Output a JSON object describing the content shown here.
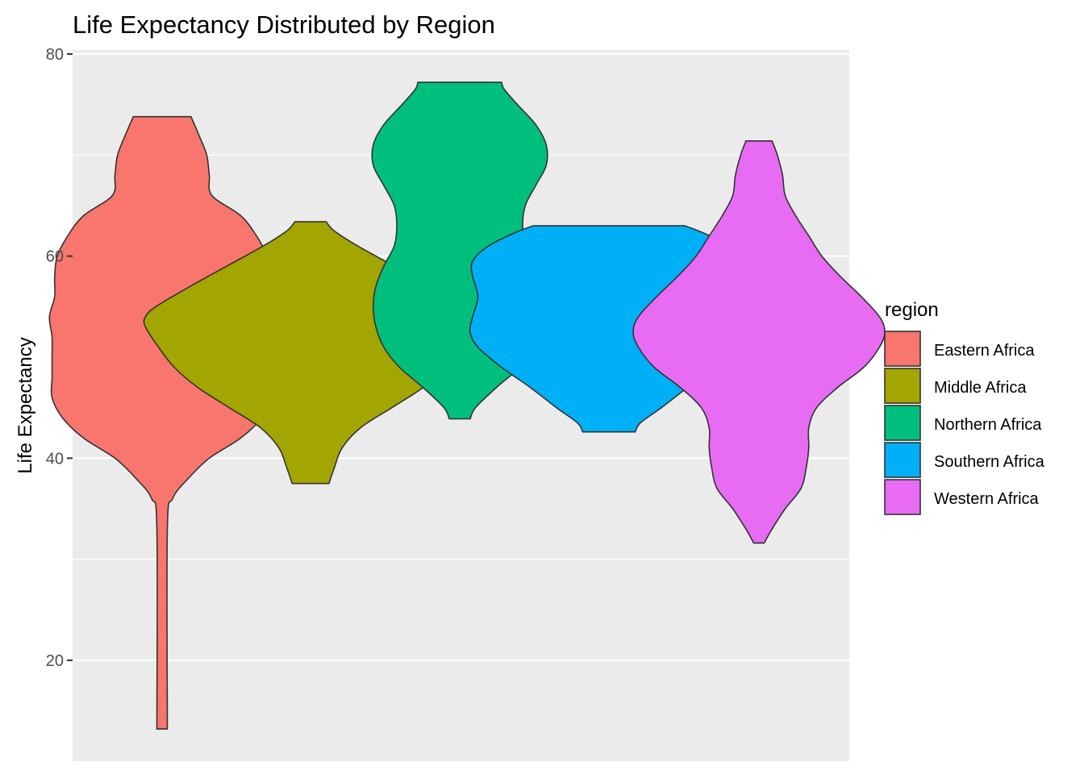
{
  "chart_data": {
    "type": "violin",
    "title": "Life Expectancy Distributed by Region",
    "xlabel": "",
    "ylabel": "Life Expectancy",
    "ylim": [
      9.5,
      80.2
    ],
    "y_ticks": [
      20,
      40,
      60,
      80
    ],
    "y_minor_ticks": [
      30,
      50,
      70
    ],
    "grid": true,
    "legend_title": "region",
    "legend_position": "right",
    "series": [
      {
        "name": "Eastern Africa",
        "color": "#F8766D",
        "min": 13.2,
        "max": 73.8,
        "profile": [
          [
            13.2,
            0.2
          ],
          [
            33,
            0.2
          ],
          [
            36,
            0.4
          ],
          [
            38,
            1.0
          ],
          [
            40,
            1.8
          ],
          [
            42,
            3.0
          ],
          [
            44,
            3.8
          ],
          [
            46,
            4.2
          ],
          [
            48,
            4.2
          ],
          [
            50,
            4.2
          ],
          [
            52,
            4.2
          ],
          [
            54,
            4.3
          ],
          [
            56,
            4.1
          ],
          [
            58,
            4.1
          ],
          [
            60,
            4.0
          ],
          [
            62,
            3.6
          ],
          [
            64,
            3.0
          ],
          [
            66,
            1.9
          ],
          [
            68,
            1.8
          ],
          [
            70,
            1.7
          ],
          [
            72,
            1.4
          ],
          [
            73.8,
            1.1
          ]
        ]
      },
      {
        "name": "Middle Africa",
        "color": "#A3A500",
        "min": 37.5,
        "max": 63.4,
        "profile": [
          [
            37.5,
            0.7
          ],
          [
            39,
            0.9
          ],
          [
            41,
            1.2
          ],
          [
            43,
            1.9
          ],
          [
            45,
            3.1
          ],
          [
            47,
            4.3
          ],
          [
            49,
            5.2
          ],
          [
            51,
            5.8
          ],
          [
            53,
            6.3
          ],
          [
            54,
            6.3
          ],
          [
            55,
            5.9
          ],
          [
            57,
            4.6
          ],
          [
            59,
            3.2
          ],
          [
            61,
            1.8
          ],
          [
            62.5,
            0.9
          ],
          [
            63.4,
            0.6
          ]
        ]
      },
      {
        "name": "Northern Africa",
        "color": "#00BF7D",
        "min": 43.9,
        "max": 77.2,
        "profile": [
          [
            43.9,
            0.4
          ],
          [
            45,
            0.6
          ],
          [
            47,
            1.4
          ],
          [
            49,
            2.3
          ],
          [
            51,
            2.9
          ],
          [
            53,
            3.2
          ],
          [
            55,
            3.3
          ],
          [
            57,
            3.2
          ],
          [
            59,
            2.9
          ],
          [
            61,
            2.5
          ],
          [
            63,
            2.4
          ],
          [
            65,
            2.5
          ],
          [
            67,
            2.9
          ],
          [
            69,
            3.3
          ],
          [
            71,
            3.3
          ],
          [
            73,
            2.9
          ],
          [
            75,
            2.2
          ],
          [
            76.5,
            1.7
          ],
          [
            77.2,
            1.6
          ]
        ]
      },
      {
        "name": "Southern Africa",
        "color": "#00B0F6",
        "min": 42.6,
        "max": 63.0,
        "profile": [
          [
            42.6,
            1.0
          ],
          [
            43.5,
            1.2
          ],
          [
            45,
            2.0
          ],
          [
            47,
            3.0
          ],
          [
            49,
            4.1
          ],
          [
            51,
            5.0
          ],
          [
            52.5,
            5.3
          ],
          [
            54,
            5.2
          ],
          [
            56,
            5.0
          ],
          [
            58,
            5.2
          ],
          [
            59.5,
            5.2
          ],
          [
            61,
            4.6
          ],
          [
            62.3,
            3.6
          ],
          [
            63.0,
            2.9
          ]
        ]
      },
      {
        "name": "Western Africa",
        "color": "#E76BF3",
        "min": 31.6,
        "max": 71.4,
        "profile": [
          [
            31.6,
            0.2
          ],
          [
            33,
            0.5
          ],
          [
            35,
            1.0
          ],
          [
            37,
            1.6
          ],
          [
            39,
            1.8
          ],
          [
            41,
            1.9
          ],
          [
            43,
            1.9
          ],
          [
            45,
            2.2
          ],
          [
            47,
            3.0
          ],
          [
            49,
            4.0
          ],
          [
            51,
            4.6
          ],
          [
            52.5,
            4.8
          ],
          [
            54,
            4.6
          ],
          [
            56,
            3.9
          ],
          [
            58,
            3.1
          ],
          [
            60,
            2.4
          ],
          [
            62,
            1.9
          ],
          [
            64,
            1.4
          ],
          [
            66,
            1.0
          ],
          [
            68,
            0.9
          ],
          [
            70,
            0.7
          ],
          [
            71.4,
            0.5
          ]
        ]
      }
    ]
  }
}
